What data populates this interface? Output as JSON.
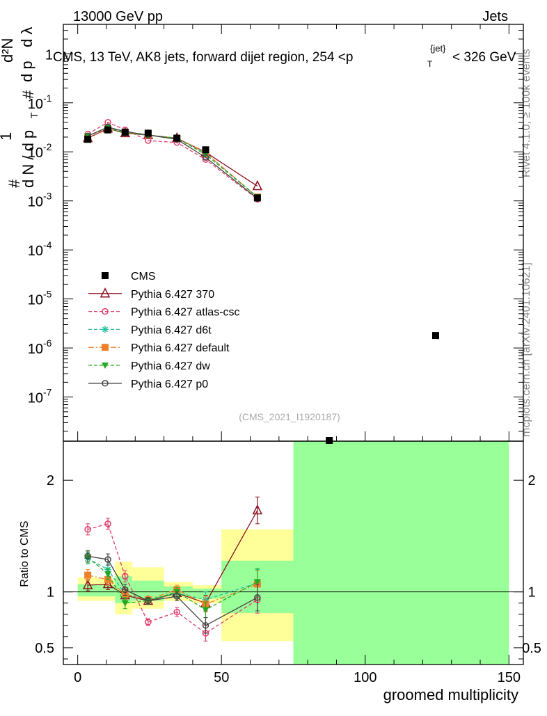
{
  "header": {
    "left": "13000 GeV pp",
    "right": "Jets"
  },
  "title": {
    "main": "CMS, 13 TeV, AK8 jets, forward dijet region, 254 <p",
    "sub_t": "T",
    "sup_jet": "{jet}",
    "tail": "< 326 GeV"
  },
  "side_labels": {
    "rivet": "Rivet 4.1.0, ≥ 100k events",
    "mcplots": "mcplots.cern.ch [arXiv:2401.10621]"
  },
  "watermark": "(CMS_2021_I1920187)",
  "y_axis_upper": {
    "label_hash": "#",
    "label_one": "1",
    "label_dN": "d N / d p",
    "label_T": "T",
    "label_num": "d²N",
    "label_den": "d p",
    "label_dlambda": "d λ",
    "ticks": [
      {
        "base": "10",
        "exp": "-1",
        "value": -1
      },
      {
        "base": "10",
        "exp": "-2",
        "value": -2
      },
      {
        "base": "10",
        "exp": "-3",
        "value": -3
      },
      {
        "base": "10",
        "exp": "-4",
        "value": -4
      },
      {
        "base": "10",
        "exp": "-5",
        "value": -5
      },
      {
        "base": "10",
        "exp": "-6",
        "value": -6
      },
      {
        "base": "10",
        "exp": "-7",
        "value": -7
      }
    ],
    "top_label": "1"
  },
  "y_axis_lower": {
    "label": "Ratio to CMS",
    "ticks": [
      {
        "text": "2",
        "value": 2
      },
      {
        "text": "1",
        "value": 1
      },
      {
        "text": "0.5",
        "value": 0.5
      }
    ]
  },
  "x_axis": {
    "label": "groomed multiplicity",
    "ticks": [
      {
        "text": "0",
        "value": 0
      },
      {
        "text": "50",
        "value": 50
      },
      {
        "text": "100",
        "value": 100
      },
      {
        "text": "150",
        "value": 150
      }
    ]
  },
  "legend": [
    {
      "label": "CMS",
      "color": "#000000",
      "marker": "square-filled",
      "dash": "none"
    },
    {
      "label": "Pythia 6.427 370",
      "color": "#8b0f1e",
      "marker": "triangle-open",
      "dash": "solid"
    },
    {
      "label": "Pythia 6.427 atlas-csc",
      "color": "#e03c6a",
      "marker": "circle-open",
      "dash": "dashed"
    },
    {
      "label": "Pythia 6.427 d6t",
      "color": "#22c0a0",
      "marker": "star",
      "dash": "dashed"
    },
    {
      "label": "Pythia 6.427 default",
      "color": "#f07f2a",
      "marker": "square-filled",
      "dash": "dashdot"
    },
    {
      "label": "Pythia 6.427 dw",
      "color": "#22aa22",
      "marker": "triangle-down-filled",
      "dash": "dashed"
    },
    {
      "label": "Pythia 6.427 p0",
      "color": "#444444",
      "marker": "circle-open",
      "dash": "solid"
    }
  ],
  "chart_data": {
    "type": "line",
    "title": "CMS, 13 TeV, AK8 jets, forward dijet region, 254 < p_T^{jet} < 326 GeV",
    "xlabel": "groomed multiplicity",
    "ylabel": "1/dN/dp_T dN²/dp_T dλ",
    "xlim": [
      -5,
      155
    ],
    "ylim_log10": [
      -7.9,
      0.6
    ],
    "ratio_ylim": [
      0.35,
      2.35
    ],
    "x": [
      3.5,
      10.5,
      16.5,
      24.5,
      34.5,
      44.5,
      62.5
    ],
    "data": {
      "name": "CMS",
      "x": [
        3.5,
        10.5,
        16.5,
        24.5,
        34.5,
        44.5,
        62.5,
        87.5,
        124.5
      ],
      "values": [
        0.018,
        0.028,
        0.025,
        0.024,
        0.019,
        0.011,
        0.00115,
        1e-08,
        1.8e-06
      ]
    },
    "series": [
      {
        "name": "Pythia 6.427 370",
        "values": [
          0.019,
          0.03,
          0.024,
          0.022,
          0.019,
          0.0098,
          0.002
        ],
        "ratio": [
          1.06,
          1.07,
          0.97,
          0.92,
          0.99,
          0.9,
          1.73
        ]
      },
      {
        "name": "Pythia 6.427 atlas-csc",
        "values": [
          0.023,
          0.04,
          0.028,
          0.017,
          0.0155,
          0.007,
          0.00108
        ],
        "ratio": [
          1.56,
          1.61,
          1.14,
          0.73,
          0.82,
          0.63,
          0.93
        ]
      },
      {
        "name": "Pythia 6.427 d6t",
        "values": [
          0.021,
          0.032,
          0.025,
          0.022,
          0.019,
          0.0095,
          0.0012
        ],
        "ratio": [
          1.3,
          1.2,
          0.98,
          0.93,
          0.99,
          0.93,
          1.08
        ]
      },
      {
        "name": "Pythia 6.427 default",
        "values": [
          0.019,
          0.029,
          0.025,
          0.022,
          0.019,
          0.0095,
          0.0012
        ],
        "ratio": [
          1.15,
          1.11,
          0.98,
          0.93,
          1.02,
          0.89,
          1.07
        ]
      },
      {
        "name": "Pythia 6.427 dw",
        "values": [
          0.021,
          0.031,
          0.024,
          0.022,
          0.019,
          0.0088,
          0.0012
        ],
        "ratio": [
          1.31,
          1.16,
          0.9,
          0.92,
          1.0,
          0.84,
          1.09
        ]
      },
      {
        "name": "Pythia 6.427 p0",
        "values": [
          0.021,
          0.032,
          0.026,
          0.022,
          0.018,
          0.0077,
          0.00112
        ],
        "ratio": [
          1.32,
          1.29,
          1.02,
          0.92,
          0.96,
          0.7,
          0.95
        ]
      }
    ],
    "ratio_errors": [
      0.05,
      0.05,
      0.05,
      0.03,
      0.04,
      0.07,
      0.12
    ],
    "bands": [
      {
        "x0": 0,
        "x1": 7,
        "yellow": [
          0.92,
          1.13
        ],
        "green": [
          0.96,
          1.07
        ]
      },
      {
        "x0": 7,
        "x1": 13,
        "yellow": [
          0.92,
          1.12
        ],
        "green": [
          0.96,
          1.06
        ]
      },
      {
        "x0": 13,
        "x1": 19,
        "yellow": [
          0.8,
          1.27
        ],
        "green": [
          0.9,
          1.14
        ]
      },
      {
        "x0": 19,
        "x1": 30,
        "yellow": [
          0.85,
          1.22
        ],
        "green": [
          0.92,
          1.1
        ]
      },
      {
        "x0": 30,
        "x1": 40,
        "yellow": [
          0.92,
          1.09
        ],
        "green": [
          0.96,
          1.05
        ]
      },
      {
        "x0": 40,
        "x1": 50,
        "yellow": [
          0.9,
          1.06
        ],
        "green": [
          0.94,
          1.03
        ]
      },
      {
        "x0": 50,
        "x1": 75,
        "yellow": [
          0.56,
          1.56
        ],
        "green": [
          0.81,
          1.28
        ]
      },
      {
        "x0": 75,
        "x1": 150,
        "yellow": [
          0.35,
          2.35
        ],
        "green": [
          0.35,
          2.35
        ]
      }
    ]
  }
}
